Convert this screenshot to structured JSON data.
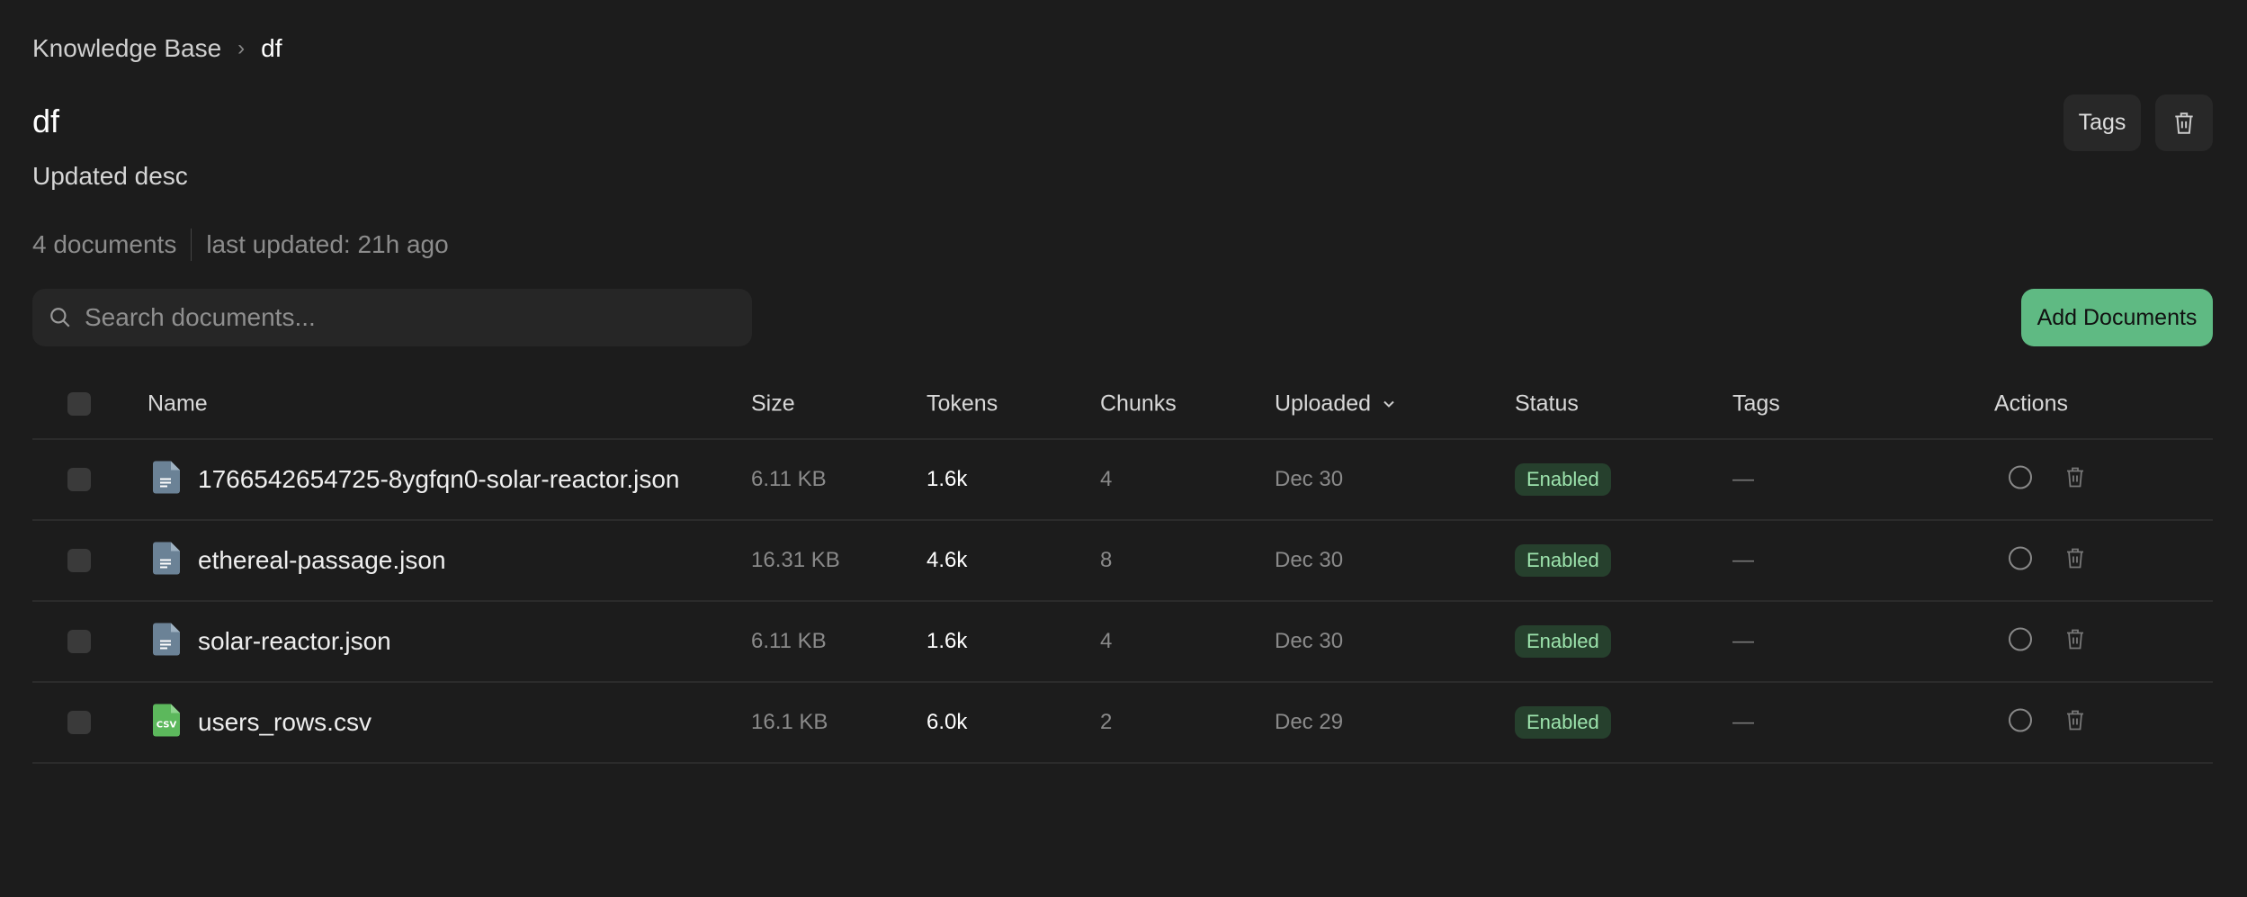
{
  "breadcrumb": {
    "root": "Knowledge Base",
    "current": "df"
  },
  "page": {
    "title": "df",
    "description": "Updated desc",
    "doc_count": "4 documents",
    "last_updated": "last updated: 21h ago"
  },
  "toolbar": {
    "tags_label": "Tags",
    "search_placeholder": "Search documents...",
    "add_label": "Add Documents"
  },
  "colors": {
    "accent": "#5fba83",
    "badge_bg": "#26402d",
    "badge_text": "#9de3ad",
    "json_icon": "#6b8296",
    "csv_icon": "#5cb85c"
  },
  "table": {
    "headers": {
      "name": "Name",
      "size": "Size",
      "tokens": "Tokens",
      "chunks": "Chunks",
      "uploaded": "Uploaded",
      "status": "Status",
      "tags": "Tags",
      "actions": "Actions"
    },
    "sort": {
      "column": "Uploaded",
      "direction": "desc"
    },
    "rows": [
      {
        "name": "1766542654725-8ygfqn0-solar-reactor.json",
        "icon": "json-file-icon",
        "size": "6.11 KB",
        "tokens": "1.6k",
        "chunks": "4",
        "uploaded": "Dec 30",
        "status": "Enabled",
        "tags": "—"
      },
      {
        "name": "ethereal-passage.json",
        "icon": "json-file-icon",
        "size": "16.31 KB",
        "tokens": "4.6k",
        "chunks": "8",
        "uploaded": "Dec 30",
        "status": "Enabled",
        "tags": "—"
      },
      {
        "name": "solar-reactor.json",
        "icon": "json-file-icon",
        "size": "6.11 KB",
        "tokens": "1.6k",
        "chunks": "4",
        "uploaded": "Dec 30",
        "status": "Enabled",
        "tags": "—"
      },
      {
        "name": "users_rows.csv",
        "icon": "csv-file-icon",
        "csv_label": "CSV",
        "size": "16.1 KB",
        "tokens": "6.0k",
        "chunks": "2",
        "uploaded": "Dec 29",
        "status": "Enabled",
        "tags": "—"
      }
    ]
  }
}
